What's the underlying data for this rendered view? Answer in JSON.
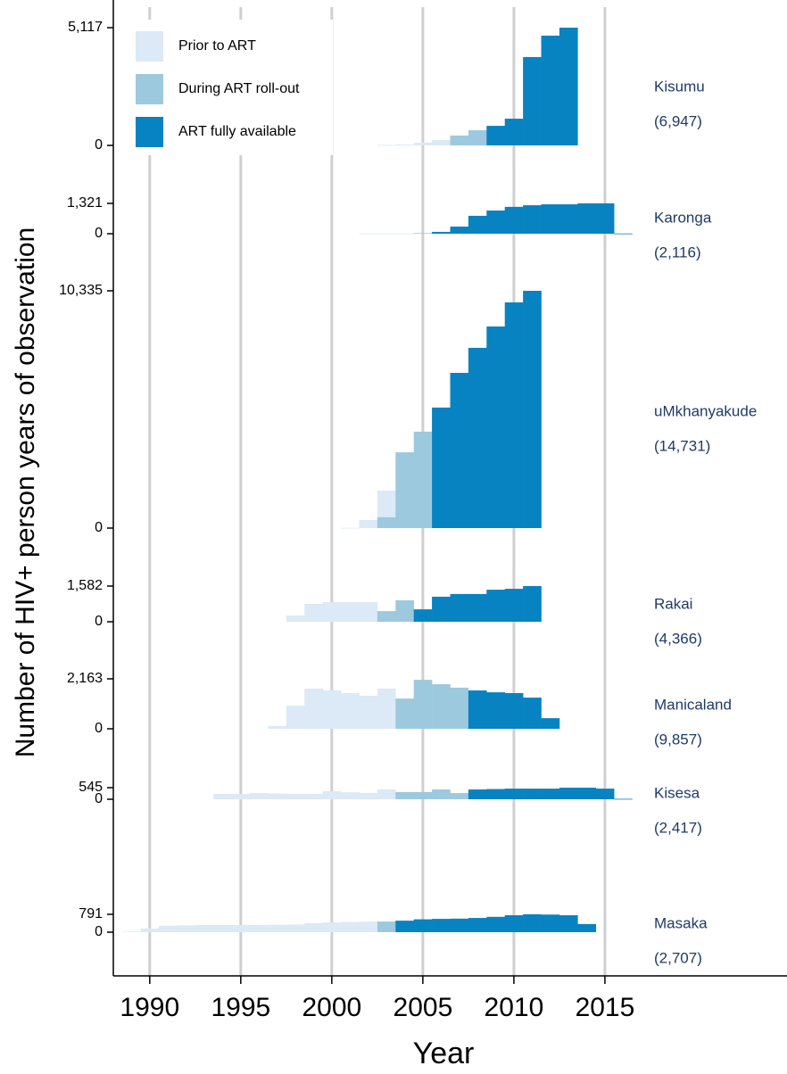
{
  "chart_data": {
    "type": "step-histogram-panels",
    "x_label": "Year",
    "y_label": "Number of HIV+ person years of observation",
    "xlim": [
      1988,
      2025
    ],
    "xticks": [
      1990,
      1995,
      2000,
      2005,
      2010,
      2015
    ],
    "grid": true,
    "legend_position": "upper left",
    "legend": [
      {
        "name": "Prior to ART",
        "color": "#dce9f6"
      },
      {
        "name": "During ART roll-out",
        "color": "#9dc9df"
      },
      {
        "name": "ART fully available",
        "color": "#0883c1"
      }
    ],
    "panels": [
      {
        "name": "Kisumu",
        "total": "(6,947)",
        "ylim": [
          0,
          5117
        ],
        "yticks": [
          0,
          {
            "value": 5117,
            "label": "5,117"
          }
        ],
        "x": [
          2003,
          2004,
          2005,
          2006,
          2007,
          2008,
          2009,
          2010,
          2011,
          2012,
          2013
        ],
        "series": [
          {
            "values": [
              20,
              40,
              120,
              230,
              null,
              null,
              null,
              null,
              null,
              null,
              null
            ]
          },
          {
            "values": [
              null,
              null,
              null,
              null,
              430,
              660,
              null,
              null,
              null,
              null,
              null
            ]
          },
          {
            "values": [
              null,
              null,
              null,
              null,
              null,
              null,
              850,
              1160,
              3840,
              4770,
              5117
            ]
          }
        ]
      },
      {
        "name": "Karonga",
        "total": "(2,116)",
        "ylim": [
          0,
          1321
        ],
        "yticks": [
          0,
          {
            "value": 1321,
            "label": "1,321"
          }
        ],
        "x": [
          2002,
          2003,
          2004,
          2005,
          2006,
          2007,
          2008,
          2009,
          2010,
          2011,
          2012,
          2013,
          2014,
          2015,
          2016
        ],
        "series": [
          {
            "values": [
              5,
              5,
              5,
              null,
              null,
              null,
              null,
              null,
              null,
              null,
              null,
              null,
              null,
              null,
              null
            ]
          },
          {
            "values": [
              null,
              null,
              null,
              30,
              null,
              null,
              null,
              null,
              null,
              null,
              null,
              null,
              null,
              null,
              null
            ]
          },
          {
            "values": [
              null,
              null,
              null,
              null,
              80,
              310,
              780,
              1010,
              1170,
              1240,
              1280,
              1280,
              1321,
              1321,
              10
            ]
          }
        ]
      },
      {
        "name": "uMkhanyakude",
        "total": "(14,731)",
        "ylim": [
          0,
          10335
        ],
        "yticks": [
          0,
          {
            "value": 10335,
            "label": "10,335"
          }
        ],
        "x": [
          2001,
          2002,
          2003,
          2004,
          2005,
          2006,
          2007,
          2008,
          2009,
          2010,
          2011
        ],
        "series": [
          {
            "values": [
              10,
              350,
              1630,
              null,
              null,
              null,
              null,
              null,
              null,
              null,
              null
            ]
          },
          {
            "values": [
              null,
              null,
              470,
              3300,
              4200,
              null,
              null,
              null,
              null,
              null,
              null
            ]
          },
          {
            "values": [
              null,
              null,
              null,
              null,
              null,
              5250,
              6760,
              7850,
              8780,
              9830,
              10335
            ]
          }
        ]
      },
      {
        "name": "Rakai",
        "total": "(4,366)",
        "ylim": [
          0,
          1582
        ],
        "yticks": [
          0,
          {
            "value": 1582,
            "label": "1,582"
          }
        ],
        "x": [
          1998,
          1999,
          2000,
          2001,
          2002,
          2003,
          2004,
          2005,
          2006,
          2007,
          2008,
          2009,
          2010,
          2011
        ],
        "series": [
          {
            "values": [
              280,
              790,
              870,
              870,
              870,
              null,
              null,
              null,
              null,
              null,
              null,
              null,
              null,
              null
            ]
          },
          {
            "values": [
              null,
              null,
              null,
              null,
              null,
              470,
              950,
              null,
              null,
              null,
              null,
              null,
              null,
              null
            ]
          },
          {
            "values": [
              null,
              null,
              null,
              null,
              null,
              null,
              null,
              550,
              1110,
              1230,
              1230,
              1420,
              1460,
              1582
            ]
          }
        ]
      },
      {
        "name": "Manicaland",
        "total": "(9,857)",
        "ylim": [
          0,
          2163
        ],
        "yticks": [
          0,
          {
            "value": 2163,
            "label": "2,163"
          }
        ],
        "x": [
          1997,
          1998,
          1999,
          2000,
          2001,
          2002,
          2003,
          2004,
          2005,
          2006,
          2007,
          2008,
          2009,
          2010,
          2011,
          2012
        ],
        "series": [
          {
            "values": [
              120,
              1000,
              1740,
              1660,
              1545,
              1430,
              1740,
              null,
              null,
              null,
              null,
              null,
              null,
              null,
              null,
              null
            ]
          },
          {
            "values": [
              null,
              null,
              null,
              null,
              null,
              null,
              null,
              1310,
              2120,
              1930,
              1780,
              null,
              null,
              null,
              null,
              null
            ]
          },
          {
            "values": [
              null,
              null,
              null,
              null,
              null,
              null,
              null,
              null,
              null,
              null,
              null,
              1660,
              1580,
              1545,
              1350,
              460
            ]
          }
        ]
      },
      {
        "name": "Kisesa",
        "total": "(2,417)",
        "ylim": [
          0,
          545
        ],
        "yticks": [
          0,
          545
        ],
        "x": [
          1994,
          1995,
          1996,
          1997,
          1998,
          1999,
          2000,
          2001,
          2002,
          2003,
          2004,
          2005,
          2006,
          2007,
          2008,
          2009,
          2010,
          2011,
          2012,
          2013,
          2014,
          2015,
          2016
        ],
        "series": [
          {
            "values": [
              250,
              250,
              290,
              270,
              250,
              250,
              380,
              330,
              300,
              460,
              null,
              null,
              null,
              null,
              null,
              null,
              null,
              null,
              null,
              null,
              null,
              null,
              null
            ]
          },
          {
            "values": [
              null,
              null,
              null,
              null,
              null,
              null,
              null,
              null,
              null,
              null,
              340,
              340,
              460,
              290,
              null,
              null,
              null,
              null,
              null,
              null,
              null,
              null,
              null
            ]
          },
          {
            "values": [
              null,
              null,
              null,
              null,
              null,
              null,
              null,
              null,
              null,
              null,
              null,
              null,
              null,
              null,
              460,
              480,
              500,
              500,
              500,
              545,
              545,
              500,
              20
            ]
          }
        ]
      },
      {
        "name": "Masaka",
        "total": "(2,707)",
        "ylim": [
          0,
          791
        ],
        "yticks": [
          0,
          791
        ],
        "x": [
          1989,
          1990,
          1991,
          1992,
          1993,
          1994,
          1995,
          1996,
          1997,
          1998,
          1999,
          2000,
          2001,
          2002,
          2003,
          2004,
          2005,
          2006,
          2007,
          2008,
          2009,
          2010,
          2011,
          2012,
          2013,
          2014
        ],
        "series": [
          {
            "values": [
              30,
              160,
              280,
              300,
              320,
              320,
              320,
              320,
              330,
              340,
              400,
              430,
              450,
              470,
              null,
              null,
              null,
              null,
              null,
              null,
              null,
              null,
              null,
              null,
              null,
              null
            ]
          },
          {
            "values": [
              null,
              null,
              null,
              null,
              null,
              null,
              null,
              null,
              null,
              null,
              null,
              null,
              null,
              null,
              470,
              null,
              null,
              null,
              null,
              null,
              null,
              null,
              null,
              null,
              null,
              null
            ]
          },
          {
            "values": [
              null,
              null,
              null,
              null,
              null,
              null,
              null,
              null,
              null,
              null,
              null,
              null,
              null,
              null,
              null,
              510,
              570,
              590,
              600,
              630,
              680,
              750,
              791,
              780,
              750,
              360
            ]
          }
        ]
      }
    ]
  }
}
